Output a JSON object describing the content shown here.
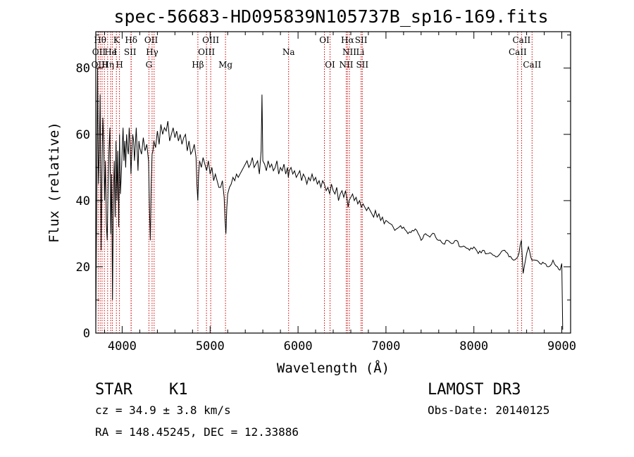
{
  "chart_data": {
    "type": "line",
    "title": "spec-56683-HD095839N105737B_sp16-169.fits",
    "xlabel": "Wavelength (Å)",
    "ylabel": "Flux (relative)",
    "xlim": [
      3700,
      9100
    ],
    "ylim": [
      0,
      91
    ],
    "xticks": [
      "4000",
      "5000",
      "6000",
      "7000",
      "8000",
      "9000"
    ],
    "yticks": [
      "0",
      "20",
      "40",
      "60",
      "80"
    ],
    "grid": false,
    "line_color": "#000000",
    "marker_color": "#cc0000",
    "series": [
      {
        "x": [
          3700,
          3710,
          3720,
          3730,
          3740,
          3750,
          3760,
          3770,
          3780,
          3790,
          3800,
          3810,
          3820,
          3830,
          3840,
          3850,
          3860,
          3870,
          3880,
          3890,
          3900,
          3910,
          3920,
          3930,
          3940,
          3950,
          3960,
          3970,
          3980,
          3990,
          4000,
          4010,
          4020,
          4030,
          4040,
          4050,
          4060,
          4070,
          4080,
          4090,
          4100,
          4110,
          4120,
          4130,
          4140,
          4150,
          4160,
          4170,
          4180,
          4190,
          4200,
          4220,
          4240,
          4260,
          4280,
          4300,
          4310,
          4320,
          4330,
          4340,
          4350,
          4360,
          4380,
          4400,
          4420,
          4440,
          4460,
          4480,
          4500,
          4520,
          4540,
          4560,
          4580,
          4600,
          4620,
          4640,
          4660,
          4680,
          4700,
          4720,
          4740,
          4760,
          4780,
          4800,
          4820,
          4840,
          4850,
          4860,
          4870,
          4880,
          4900,
          4920,
          4940,
          4960,
          4980,
          5000,
          5020,
          5040,
          5060,
          5080,
          5100,
          5120,
          5140,
          5160,
          5170,
          5180,
          5190,
          5200,
          5220,
          5240,
          5260,
          5280,
          5300,
          5320,
          5340,
          5360,
          5380,
          5400,
          5420,
          5440,
          5460,
          5480,
          5500,
          5520,
          5540,
          5560,
          5580,
          5590,
          5600,
          5620,
          5640,
          5660,
          5680,
          5700,
          5720,
          5740,
          5760,
          5780,
          5800,
          5820,
          5840,
          5860,
          5880,
          5890,
          5900,
          5920,
          5940,
          5960,
          5980,
          6000,
          6020,
          6040,
          6060,
          6080,
          6100,
          6120,
          6140,
          6160,
          6180,
          6200,
          6220,
          6240,
          6260,
          6280,
          6300,
          6320,
          6340,
          6360,
          6380,
          6400,
          6420,
          6440,
          6460,
          6480,
          6500,
          6520,
          6540,
          6560,
          6570,
          6580,
          6600,
          6620,
          6640,
          6660,
          6680,
          6700,
          6720,
          6740,
          6760,
          6780,
          6800,
          6820,
          6840,
          6860,
          6880,
          6900,
          6920,
          6940,
          6960,
          6980,
          7000,
          7050,
          7100,
          7150,
          7200,
          7250,
          7300,
          7350,
          7400,
          7450,
          7500,
          7550,
          7600,
          7650,
          7700,
          7750,
          7800,
          7850,
          7900,
          7950,
          8000,
          8050,
          8100,
          8150,
          8200,
          8250,
          8300,
          8350,
          8400,
          8450,
          8500,
          8540,
          8560,
          8600,
          8620,
          8660,
          8700,
          8750,
          8800,
          8850,
          8900,
          8950,
          8980,
          9000,
          9010
        ],
        "y": [
          2,
          38,
          80,
          45,
          55,
          72,
          25,
          48,
          65,
          58,
          40,
          52,
          33,
          28,
          45,
          55,
          62,
          30,
          48,
          10,
          42,
          52,
          35,
          58,
          40,
          55,
          32,
          60,
          42,
          48,
          55,
          62,
          52,
          58,
          50,
          60,
          56,
          54,
          62,
          57,
          48,
          55,
          60,
          58,
          52,
          57,
          62,
          55,
          49,
          58,
          56,
          54,
          59,
          55,
          57,
          52,
          38,
          28,
          45,
          54,
          55,
          58,
          56,
          61,
          57,
          63,
          60,
          62,
          61,
          64,
          58,
          60,
          62,
          59,
          61,
          58,
          60,
          57,
          59,
          60,
          55,
          58,
          54,
          55,
          57,
          53,
          45,
          40,
          48,
          52,
          50,
          53,
          51,
          49,
          52,
          48,
          50,
          46,
          48,
          46,
          44,
          44,
          46,
          41,
          34,
          30,
          38,
          42,
          44,
          45,
          47,
          46,
          48,
          47,
          48,
          49,
          50,
          51,
          52,
          50,
          51,
          53,
          50,
          51,
          52,
          48,
          55,
          72,
          52,
          51,
          49,
          52,
          50,
          51,
          49,
          50,
          52,
          48,
          50,
          49,
          51,
          48,
          50,
          47,
          49,
          50,
          48,
          49,
          47,
          48,
          49,
          46,
          48,
          47,
          45,
          47,
          46,
          48,
          46,
          47,
          45,
          46,
          44,
          46,
          45,
          43,
          44,
          42,
          45,
          43,
          42,
          44,
          40,
          42,
          43,
          41,
          43,
          40,
          38,
          40,
          41,
          42,
          40,
          41,
          39,
          40,
          38,
          39,
          38,
          37,
          38,
          37,
          36,
          35,
          37,
          35,
          36,
          34,
          35,
          33,
          34,
          33,
          31,
          32,
          32,
          30,
          31,
          31,
          28,
          30,
          29,
          30,
          28,
          27,
          28,
          27,
          28,
          26,
          26,
          25,
          26,
          24,
          25,
          24,
          24,
          23,
          24,
          25,
          23,
          22,
          23,
          28,
          18,
          24,
          26,
          22,
          22,
          21,
          21,
          20,
          22,
          20,
          19,
          21,
          1
        ]
      }
    ],
    "lines": {
      "wavelengths": [
        3727,
        3750,
        3771,
        3798,
        3835,
        3869,
        3889,
        3934,
        3969,
        4102,
        4101,
        4304,
        4340,
        4363,
        4861,
        4959,
        5007,
        5175,
        5893,
        6300,
        6364,
        6548,
        6563,
        6584,
        6717,
        6731,
        8498,
        8542,
        8662
      ],
      "labels": [
        {
          "text": "Hθ",
          "w": 3750,
          "row": 0
        },
        {
          "text": "K",
          "w": 3934,
          "row": 0
        },
        {
          "text": "Hδ",
          "w": 4102,
          "row": 0
        },
        {
          "text": "OII",
          "w": 4330,
          "row": 0
        },
        {
          "text": "OIII",
          "w": 5007,
          "row": 0
        },
        {
          "text": "OI",
          "w": 6300,
          "row": 0
        },
        {
          "text": "Hα",
          "w": 6563,
          "row": 0
        },
        {
          "text": "SII",
          "w": 6717,
          "row": 0
        },
        {
          "text": "CaII",
          "w": 8542,
          "row": 0
        },
        {
          "text": "OII",
          "w": 3735,
          "row": 1
        },
        {
          "text": "He",
          "w": 3869,
          "row": 1
        },
        {
          "text": "I",
          "w": 3920,
          "row": 1
        },
        {
          "text": "SII",
          "w": 4090,
          "row": 1
        },
        {
          "text": "Hγ",
          "w": 4340,
          "row": 1
        },
        {
          "text": "OIII",
          "w": 4959,
          "row": 1
        },
        {
          "text": "Na",
          "w": 5893,
          "row": 1
        },
        {
          "text": "NII",
          "w": 6584,
          "row": 1
        },
        {
          "text": "Li",
          "w": 6708,
          "row": 1
        },
        {
          "text": "CaII",
          "w": 8498,
          "row": 1
        },
        {
          "text": "OIII",
          "w": 3745,
          "row": 2
        },
        {
          "text": "Hη",
          "w": 3838,
          "row": 2
        },
        {
          "text": "H",
          "w": 3969,
          "row": 2
        },
        {
          "text": "G",
          "w": 4304,
          "row": 2
        },
        {
          "text": "Hβ",
          "w": 4861,
          "row": 2
        },
        {
          "text": "Mg",
          "w": 5175,
          "row": 2
        },
        {
          "text": "OI",
          "w": 6364,
          "row": 2
        },
        {
          "text": "NII",
          "w": 6548,
          "row": 2
        },
        {
          "text": "SII",
          "w": 6731,
          "row": 2
        },
        {
          "text": "CaII",
          "w": 8662,
          "row": 2
        }
      ]
    }
  },
  "info": {
    "object_class": "STAR",
    "subclass": "K1",
    "survey": "LAMOST DR3",
    "cz": "cz = 34.9 ± 3.8 km/s",
    "obs_date": "Obs-Date: 20140125",
    "radec": "RA = 148.45245, DEC =  12.33886"
  }
}
